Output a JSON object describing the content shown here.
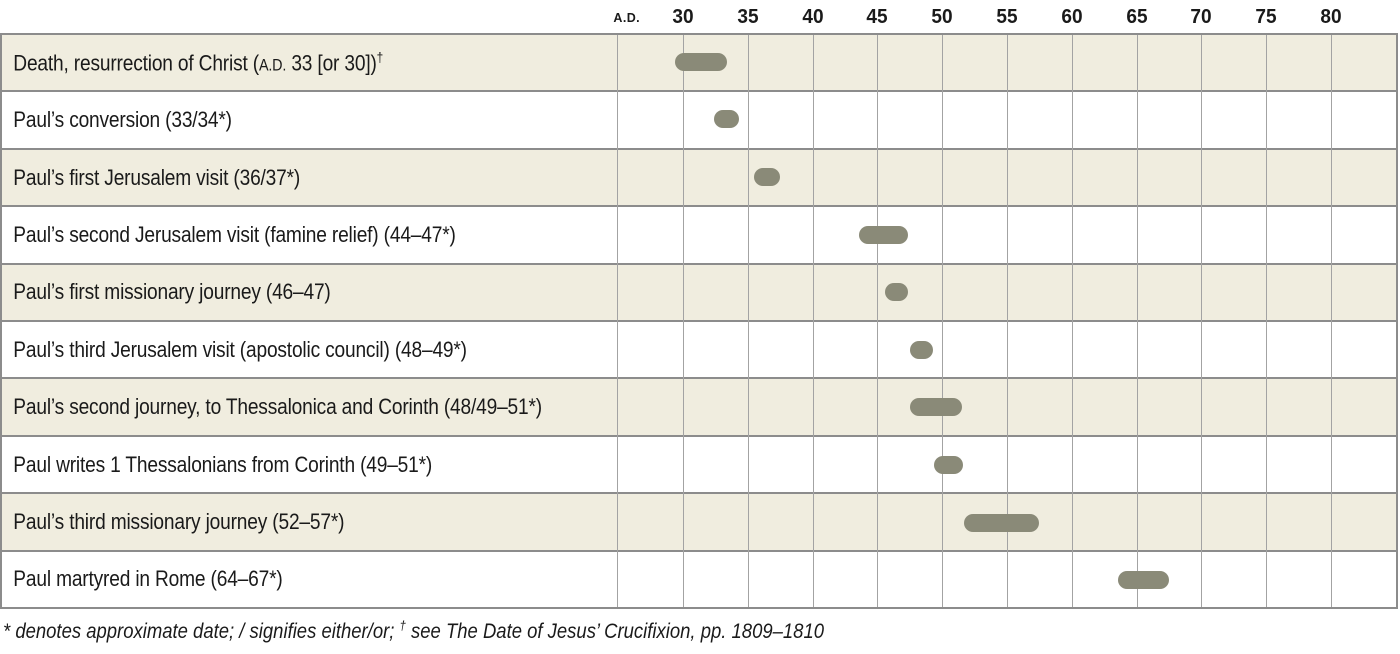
{
  "axis": {
    "label": "A.D."
  },
  "footer": {
    "note_prefix": "* denotes approximate date; / signifies either/or; ",
    "note_dagger": "†",
    "note_suffix": " see The Date of Jesus’ Crucifixion, pp. 1809–1810"
  },
  "colors": {
    "row_shade": "#f0eddf",
    "row_plain": "#ffffff",
    "bar": "#8a8a78",
    "gridline": "#a3a3a3",
    "border": "#8c8c8c",
    "text": "#1a1a1a"
  },
  "chart_data": {
    "type": "bar",
    "variant": "horizontal-timeline",
    "xlabel": "A.D.",
    "x_ticks": [
      30,
      35,
      40,
      45,
      50,
      55,
      60,
      65,
      70,
      75,
      80
    ],
    "xlim": [
      25,
      85
    ],
    "grid": true,
    "legend": false,
    "rows": [
      {
        "label": "Death, resurrection of Christ (A.D. 33 [or 30])",
        "sup": "†",
        "start": 29.4,
        "end": 33.4
      },
      {
        "label": "Paul’s conversion (33/34*)",
        "sup": "",
        "start": 32.4,
        "end": 34.3
      },
      {
        "label": "Paul’s first Jerusalem visit (36/37*)",
        "sup": "",
        "start": 35.5,
        "end": 37.5
      },
      {
        "label": "Paul’s second Jerusalem visit (famine relief) (44–47*)",
        "sup": "",
        "start": 43.6,
        "end": 47.4
      },
      {
        "label": "Paul’s first missionary journey (46–47)",
        "sup": "",
        "start": 45.6,
        "end": 47.4
      },
      {
        "label": "Paul’s third Jerusalem visit (apostolic council) (48–49*)",
        "sup": "",
        "start": 47.5,
        "end": 49.3
      },
      {
        "label": "Paul’s second journey, to Thessalonica and Corinth (48/49–51*)",
        "sup": "",
        "start": 47.5,
        "end": 51.5
      },
      {
        "label": "Paul writes 1 Thessalonians from Corinth (49–51*)",
        "sup": "",
        "start": 49.4,
        "end": 51.6
      },
      {
        "label": "Paul’s third missionary journey (52–57*)",
        "sup": "",
        "start": 51.7,
        "end": 57.5
      },
      {
        "label": "Paul martyred in Rome (64–67*)",
        "sup": "",
        "start": 63.6,
        "end": 67.5
      }
    ]
  }
}
